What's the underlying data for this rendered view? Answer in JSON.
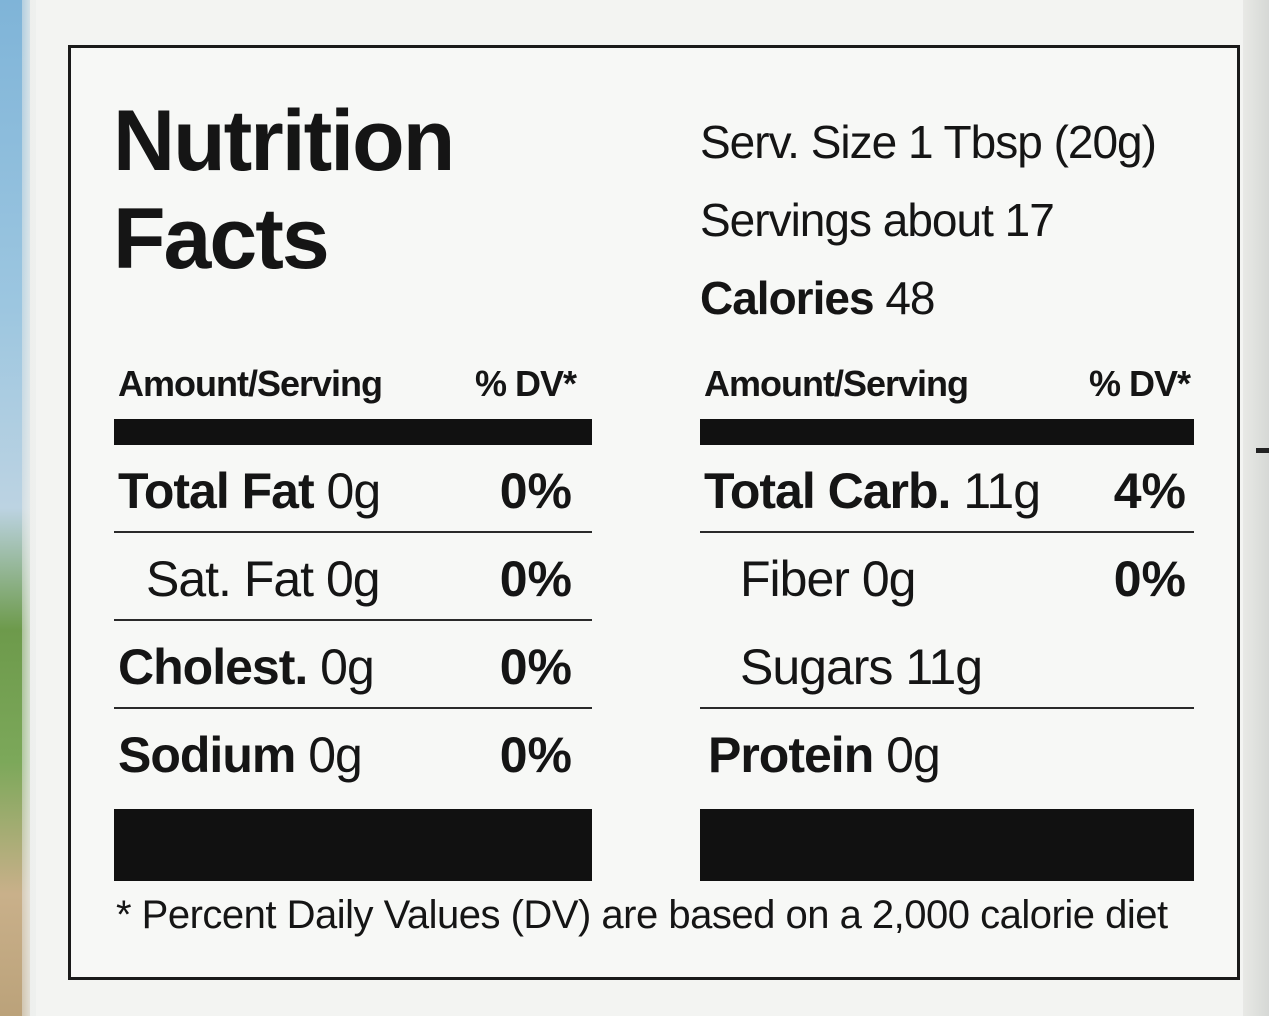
{
  "label": {
    "title_line1": "Nutrition",
    "title_line2": "Facts",
    "serving_size": "Serv. Size 1 Tbsp (20g)",
    "servings": "Servings about 17",
    "calories_label": "Calories",
    "calories_value": "48",
    "header_amount": "Amount/Serving",
    "header_dv": "% DV*",
    "left_rows": [
      {
        "name": "Total Fat",
        "amount": "0g",
        "dv": "0%"
      },
      {
        "name": "Sat. Fat",
        "amount": "0g",
        "dv": "0%"
      },
      {
        "name": "Cholest.",
        "amount": "0g",
        "dv": "0%"
      },
      {
        "name": "Sodium",
        "amount": "0g",
        "dv": "0%"
      }
    ],
    "right_rows": [
      {
        "name": "Total Carb.",
        "amount": "11g",
        "dv": "4%"
      },
      {
        "name": "Fiber",
        "amount": "0g",
        "dv": "0%"
      },
      {
        "name": "Sugars",
        "amount": "11g",
        "dv": ""
      },
      {
        "name": "Protein",
        "amount": "0g",
        "dv": ""
      }
    ],
    "footnote": "* Percent Daily Values (DV) are based on a 2,000 calorie diet"
  }
}
